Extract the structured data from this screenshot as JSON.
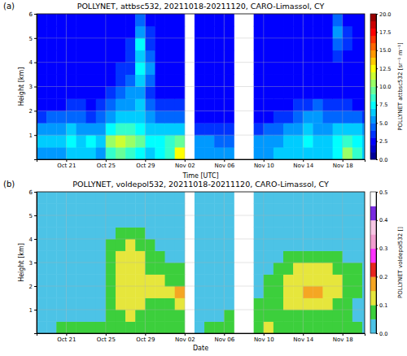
{
  "chart_data": [
    {
      "type": "heatmap",
      "panel": "(a)",
      "title": "POLLYNET, attbsc532, 20211018-20211120, CARO-Limassol, CY",
      "xlabel": "Time [UTC]",
      "ylabel": "Height [km]",
      "xlim": [
        "2021-10-18T00:00",
        "2021-11-20T06:00"
      ],
      "xticks": [
        {
          "value": "2021-10-21",
          "label": "Oct 21"
        },
        {
          "value": "2021-10-25",
          "label": "Oct 25"
        },
        {
          "value": "2021-10-29",
          "label": "Oct 29"
        },
        {
          "value": "2021-11-02",
          "label": "Nov 02"
        },
        {
          "value": "2021-11-06",
          "label": "Nov 06"
        },
        {
          "value": "2021-11-10",
          "label": "Nov 10"
        },
        {
          "value": "2021-11-14",
          "label": "Nov 14"
        },
        {
          "value": "2021-11-18",
          "label": "Nov 18"
        }
      ],
      "ylim": [
        0,
        6
      ],
      "yticks": [
        1,
        2,
        3,
        4,
        5,
        6
      ],
      "grid": true,
      "x_bins": [
        "2021-10-18",
        "2021-10-19",
        "2021-10-20",
        "2021-10-21",
        "2021-10-22",
        "2021-10-23",
        "2021-10-24",
        "2021-10-25",
        "2021-10-26",
        "2021-10-27",
        "2021-10-28",
        "2021-10-29",
        "2021-10-30",
        "2021-10-31",
        "2021-11-01",
        "2021-11-02",
        "2021-11-03",
        "2021-11-04",
        "2021-11-05",
        "2021-11-06",
        "2021-11-07",
        "2021-11-08",
        "2021-11-09",
        "2021-11-10",
        "2021-11-11",
        "2021-11-12",
        "2021-11-13",
        "2021-11-14",
        "2021-11-15",
        "2021-11-16",
        "2021-11-17",
        "2021-11-18",
        "2021-11-19",
        "2021-11-20",
        "2021-11-21"
      ],
      "y_bins": [
        0,
        0.5,
        1,
        1.5,
        2,
        2.5,
        3,
        3.5,
        4,
        4.5,
        5,
        5.5,
        6
      ],
      "cells": [
        [
          5,
          5,
          5,
          6,
          6,
          6,
          5,
          8,
          9,
          8,
          7,
          6,
          7,
          8,
          12,
          null,
          5,
          5,
          5,
          5,
          null,
          null,
          5,
          5,
          6,
          6,
          6,
          6,
          6,
          6,
          7,
          10,
          8,
          6
        ],
        [
          6,
          6,
          6,
          7,
          6,
          7,
          6,
          10,
          11,
          10,
          9,
          7,
          7,
          8,
          9,
          null,
          5,
          5,
          4,
          4,
          null,
          null,
          5,
          5,
          5,
          6,
          6,
          7,
          6,
          6,
          7,
          8,
          7,
          6
        ],
        [
          5,
          5,
          5,
          6,
          5,
          5,
          5,
          7,
          8,
          8,
          7,
          6,
          6,
          6,
          6,
          null,
          3,
          3,
          3,
          3,
          null,
          null,
          3,
          4,
          4,
          5,
          5,
          6,
          5,
          5,
          6,
          6,
          6,
          5
        ],
        [
          3,
          4,
          4,
          4,
          4,
          3,
          4,
          5,
          6,
          6,
          6,
          5,
          4,
          4,
          4,
          null,
          2,
          2,
          2,
          2,
          null,
          null,
          2,
          2,
          3,
          3,
          4,
          5,
          5,
          4,
          4,
          4,
          4,
          3
        ],
        [
          2,
          2,
          2,
          3,
          3,
          2,
          3,
          4,
          5,
          5,
          6,
          4,
          3,
          3,
          3,
          null,
          2,
          2,
          2,
          2,
          null,
          null,
          2,
          2,
          2,
          2,
          3,
          3,
          4,
          3,
          3,
          3,
          2,
          2
        ],
        [
          2,
          2,
          2,
          2,
          2,
          2,
          2,
          3,
          4,
          5,
          5,
          3,
          2,
          2,
          2,
          null,
          2,
          2,
          2,
          2,
          null,
          null,
          2,
          2,
          2,
          2,
          2,
          2,
          2,
          2,
          2,
          2,
          2,
          2
        ],
        [
          2,
          2,
          2,
          2,
          2,
          2,
          2,
          2,
          3,
          4,
          6,
          4,
          2,
          2,
          2,
          null,
          2,
          2,
          2,
          2,
          null,
          null,
          2,
          2,
          2,
          2,
          2,
          2,
          2,
          2,
          2,
          2,
          2,
          2
        ],
        [
          2,
          2,
          2,
          2,
          2,
          2,
          2,
          2,
          3,
          3,
          7,
          5,
          2,
          2,
          2,
          null,
          2,
          2,
          2,
          2,
          null,
          null,
          2,
          2,
          2,
          2,
          2,
          2,
          2,
          2,
          2,
          2,
          2,
          2
        ],
        [
          2,
          2,
          2,
          2,
          2,
          2,
          2,
          2,
          2,
          3,
          6,
          4,
          2,
          2,
          2,
          null,
          2,
          2,
          2,
          2,
          null,
          null,
          2,
          2,
          2,
          2,
          2,
          2,
          2,
          2,
          3,
          2,
          2,
          2
        ],
        [
          2,
          2,
          2,
          2,
          2,
          2,
          2,
          2,
          2,
          3,
          7,
          3,
          2,
          2,
          2,
          null,
          2,
          2,
          2,
          2,
          null,
          null,
          2,
          2,
          2,
          2,
          2,
          2,
          2,
          2,
          4,
          3,
          2,
          2
        ],
        [
          2,
          2,
          2,
          2,
          2,
          2,
          2,
          2,
          2,
          2,
          5,
          3,
          2,
          2,
          2,
          null,
          2,
          2,
          2,
          2,
          null,
          null,
          2,
          2,
          2,
          2,
          2,
          2,
          2,
          2,
          5,
          3,
          2,
          2
        ],
        [
          2,
          2,
          2,
          2,
          2,
          2,
          2,
          2,
          2,
          2,
          4,
          2,
          2,
          2,
          2,
          null,
          2,
          2,
          2,
          2,
          null,
          null,
          2,
          2,
          2,
          2,
          2,
          2,
          2,
          2,
          4,
          2,
          2,
          2
        ]
      ],
      "colorbar_label": "POLLYNET attbsc532 [sr⁻¹ m⁻¹]",
      "colorbar_range": [
        0,
        20
      ],
      "colorbar_ticks": [
        {
          "value": 0,
          "label": "0.0"
        },
        2.5,
        {
          "value": 5,
          "label": "5.0"
        },
        7.5,
        {
          "value": 10,
          "label": "10.0"
        },
        12.5,
        {
          "value": 15,
          "label": "15.0"
        },
        17.5,
        {
          "value": 20,
          "label": "20.0"
        }
      ],
      "colors": [
        "#000099",
        "#0000cc",
        "#0000ff",
        "#0033ff",
        "#0066ff",
        "#0099ff",
        "#00ccff",
        "#00ffff",
        "#33ffcc",
        "#66ff99",
        "#99ff66",
        "#ccff33",
        "#ffff00",
        "#ffcc00",
        "#ff9900",
        "#ff6600",
        "#ff3300",
        "#ff0000",
        "#cc0000",
        "#990000"
      ]
    },
    {
      "type": "heatmap",
      "panel": "(b)",
      "title": "POLLYNET, voldepol532, 20211018-20211120, CARO-Limassol, CY",
      "xlabel": "Date",
      "ylabel": "Height [km]",
      "xlim": [
        "2021-10-18T00:00",
        "2021-11-20T06:00"
      ],
      "xticks": [
        {
          "value": "2021-10-21",
          "label": "Oct 21"
        },
        {
          "value": "2021-10-25",
          "label": "Oct 25"
        },
        {
          "value": "2021-10-29",
          "label": "Oct 29"
        },
        {
          "value": "2021-11-02",
          "label": "Nov 02"
        },
        {
          "value": "2021-11-06",
          "label": "Nov 06"
        },
        {
          "value": "2021-11-10",
          "label": "Nov 10"
        },
        {
          "value": "2021-11-14",
          "label": "Nov 14"
        },
        {
          "value": "2021-11-18",
          "label": "Nov 18"
        }
      ],
      "ylim": [
        0,
        6
      ],
      "yticks": [
        1,
        2,
        3,
        4,
        5,
        6
      ],
      "grid": true,
      "x_bins": [
        "2021-10-18",
        "2021-10-19",
        "2021-10-20",
        "2021-10-21",
        "2021-10-22",
        "2021-10-23",
        "2021-10-24",
        "2021-10-25",
        "2021-10-26",
        "2021-10-27",
        "2021-10-28",
        "2021-10-29",
        "2021-10-30",
        "2021-10-31",
        "2021-11-01",
        "2021-11-02",
        "2021-11-03",
        "2021-11-04",
        "2021-11-05",
        "2021-11-06",
        "2021-11-07",
        "2021-11-08",
        "2021-11-09",
        "2021-11-10",
        "2021-11-11",
        "2021-11-12",
        "2021-11-13",
        "2021-11-14",
        "2021-11-15",
        "2021-11-16",
        "2021-11-17",
        "2021-11-18",
        "2021-11-19",
        "2021-11-20",
        "2021-11-21"
      ],
      "y_bins": [
        0,
        0.5,
        1,
        1.5,
        2,
        2.5,
        3,
        3.5,
        4,
        4.5,
        5,
        5.5,
        6
      ],
      "cells": [
        [
          0.04,
          0.04,
          0.05,
          0.06,
          0.07,
          0.06,
          0.05,
          0.06,
          0.08,
          0.09,
          0.08,
          0.07,
          0.07,
          0.06,
          0.08,
          null,
          0.04,
          0.05,
          0.06,
          0.06,
          null,
          null,
          0.09,
          0.12,
          0.09,
          0.08,
          0.07,
          0.08,
          0.08,
          0.07,
          0.06,
          0.05,
          0.05,
          0.04
        ],
        [
          0.03,
          0.03,
          0.03,
          0.04,
          0.04,
          0.04,
          0.04,
          0.06,
          0.09,
          0.1,
          0.09,
          0.08,
          0.08,
          0.07,
          0.08,
          null,
          0.03,
          0.04,
          0.04,
          0.05,
          null,
          null,
          0.08,
          0.09,
          0.08,
          0.08,
          0.08,
          0.09,
          0.09,
          0.08,
          0.07,
          0.06,
          0.04,
          0.03
        ],
        [
          0.03,
          0.03,
          0.03,
          0.03,
          0.03,
          0.03,
          0.04,
          0.07,
          0.11,
          0.12,
          0.12,
          0.09,
          0.09,
          0.08,
          0.11,
          null,
          0.03,
          0.03,
          0.03,
          0.04,
          null,
          null,
          0.05,
          0.07,
          0.09,
          0.1,
          0.12,
          0.13,
          0.12,
          0.11,
          0.09,
          0.08,
          0.04,
          0.03
        ],
        [
          0.03,
          0.03,
          0.03,
          0.03,
          0.03,
          0.03,
          0.04,
          0.08,
          0.12,
          0.13,
          0.13,
          0.1,
          0.1,
          0.11,
          0.17,
          null,
          0.03,
          0.03,
          0.03,
          0.04,
          null,
          null,
          0.04,
          0.05,
          0.08,
          0.11,
          0.14,
          0.17,
          0.15,
          0.13,
          0.11,
          0.09,
          0.05,
          0.03
        ],
        [
          0.04,
          0.04,
          0.04,
          0.04,
          0.04,
          0.04,
          0.04,
          0.08,
          0.12,
          0.14,
          0.13,
          0.11,
          0.1,
          0.09,
          0.07,
          null,
          0.04,
          0.04,
          0.04,
          0.04,
          null,
          null,
          0.04,
          0.05,
          0.07,
          0.1,
          0.13,
          0.14,
          0.14,
          0.12,
          0.1,
          0.08,
          0.05,
          0.04
        ],
        [
          0.04,
          0.04,
          0.04,
          0.04,
          0.04,
          0.04,
          0.04,
          0.07,
          0.12,
          0.14,
          0.12,
          0.08,
          0.06,
          0.05,
          0.05,
          null,
          0.04,
          0.04,
          0.04,
          0.04,
          null,
          null,
          0.04,
          0.04,
          0.06,
          0.08,
          0.11,
          0.12,
          0.11,
          0.1,
          0.08,
          0.06,
          0.05,
          0.04
        ],
        [
          0.04,
          0.04,
          0.04,
          0.04,
          0.04,
          0.04,
          0.04,
          0.06,
          0.11,
          0.13,
          0.1,
          0.06,
          0.05,
          0.04,
          0.04,
          null,
          0.04,
          0.04,
          0.04,
          0.04,
          null,
          null,
          0.04,
          0.04,
          0.04,
          0.05,
          0.07,
          0.08,
          0.07,
          0.06,
          0.05,
          0.04,
          0.04,
          0.04
        ],
        [
          0.04,
          0.04,
          0.04,
          0.04,
          0.04,
          0.04,
          0.04,
          0.05,
          0.09,
          0.1,
          0.07,
          0.05,
          0.04,
          0.04,
          0.04,
          null,
          0.04,
          0.04,
          0.04,
          0.04,
          null,
          null,
          0.04,
          0.04,
          0.04,
          0.04,
          0.04,
          0.04,
          0.04,
          0.04,
          0.04,
          0.04,
          0.04,
          0.04
        ],
        [
          0.04,
          0.04,
          0.04,
          0.04,
          0.04,
          0.04,
          0.04,
          0.04,
          0.06,
          0.07,
          0.06,
          0.04,
          0.04,
          0.04,
          0.04,
          null,
          0.04,
          0.04,
          0.04,
          0.04,
          null,
          null,
          0.04,
          0.04,
          0.04,
          0.04,
          0.04,
          0.04,
          0.04,
          0.04,
          0.04,
          0.04,
          0.04,
          0.04
        ],
        [
          0.04,
          0.04,
          0.04,
          0.04,
          0.04,
          0.04,
          0.04,
          0.04,
          0.04,
          0.04,
          0.04,
          0.04,
          0.04,
          0.04,
          0.04,
          null,
          0.04,
          0.04,
          0.04,
          0.04,
          null,
          null,
          0.04,
          0.04,
          0.04,
          0.04,
          0.04,
          0.04,
          0.04,
          0.04,
          0.04,
          0.04,
          0.04,
          0.04
        ],
        [
          0.04,
          0.04,
          0.04,
          0.04,
          0.04,
          0.04,
          0.04,
          0.04,
          0.04,
          0.04,
          0.04,
          0.04,
          0.04,
          0.04,
          0.04,
          null,
          0.04,
          0.04,
          0.04,
          0.04,
          null,
          null,
          0.04,
          0.04,
          0.04,
          0.04,
          0.04,
          0.04,
          0.04,
          0.04,
          0.04,
          0.04,
          0.04,
          0.04
        ],
        [
          0.04,
          0.04,
          0.04,
          0.04,
          0.04,
          0.04,
          0.04,
          0.04,
          0.04,
          0.04,
          0.04,
          0.04,
          0.04,
          0.04,
          0.04,
          null,
          0.04,
          0.04,
          0.04,
          0.04,
          null,
          null,
          0.04,
          0.04,
          0.04,
          0.04,
          0.04,
          0.04,
          0.04,
          0.04,
          0.04,
          0.04,
          0.04,
          0.04
        ]
      ],
      "colorbar_label": "POLLYNET voldepol532 []",
      "colorbar_range": [
        0,
        0.5
      ],
      "colorbar_ticks": [
        {
          "value": 0,
          "label": "0.0"
        },
        0.1,
        0.2,
        0.3,
        0.4,
        0.5
      ],
      "colors": [
        "#4cc3e6",
        "#3ccf3c",
        "#e6e63c",
        "#f5a623",
        "#e8261e",
        "#ff33ff",
        "#f29ed0",
        "#f7c6e3",
        "#7a2be0",
        "#ffffff"
      ]
    }
  ]
}
